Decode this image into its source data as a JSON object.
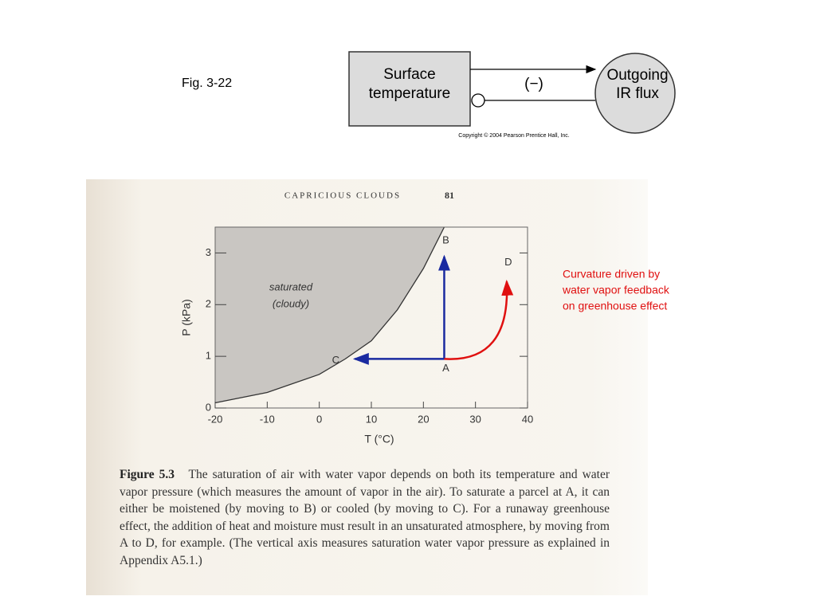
{
  "fig_label": "Fig. 3-22",
  "diagram": {
    "nodes": [
      {
        "label": [
          "Surface",
          "temperature"
        ]
      },
      {
        "label": [
          "Outgoing",
          "IR flux"
        ]
      }
    ],
    "edge_label": "(−)",
    "copyright": "Copyright © 2004 Pearson Prentice Hall, Inc."
  },
  "book": {
    "header": "CAPRICIOUS CLOUDS",
    "page": "81",
    "caption": {
      "label": "Figure 5.3",
      "text": "The saturation of air with water vapor depends on both its temperature and water vapor pressure (which measures the amount of vapor in the air). To saturate a parcel at A, it can either be moistened (by moving to B) or cooled (by moving to C). For a runaway greenhouse effect, the addition of heat and moisture must result in an unsaturated atmosphere, by moving from A to D, for example. (The vertical axis measures saturation water vapor pressure as explained in Appendix A5.1.)"
    }
  },
  "annotation": [
    "Curvature driven by",
    "water vapor feedback",
    "on greenhouse effect"
  ],
  "chart_data": {
    "type": "line",
    "x": [
      -20,
      -10,
      0,
      5,
      10,
      15,
      20,
      24
    ],
    "values": [
      0.1,
      0.3,
      0.65,
      0.95,
      1.3,
      1.9,
      2.7,
      3.5
    ],
    "xlim": [
      -20,
      40
    ],
    "ylim": [
      0,
      3.5
    ],
    "xticks": [
      -20,
      -10,
      0,
      10,
      20,
      30,
      40
    ],
    "yticks": [
      0,
      1,
      2,
      3
    ],
    "xlabel": "T (°C)",
    "ylabel": "P (kPa)",
    "region_label": [
      "saturated",
      "(cloudy)"
    ],
    "points": [
      {
        "label": "A",
        "x": 24,
        "y": 0.95
      },
      {
        "label": "B",
        "x": 24,
        "y": 3.05
      },
      {
        "label": "C",
        "x": 5,
        "y": 0.95
      },
      {
        "label": "D",
        "x": 36,
        "y": 2.6
      }
    ]
  }
}
